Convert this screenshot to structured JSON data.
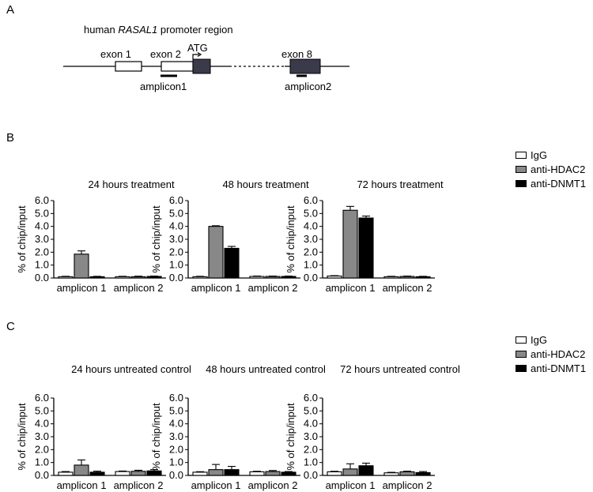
{
  "panel_labels": {
    "a": "A",
    "b": "B",
    "c": "C"
  },
  "diagram": {
    "title_prefix": "human ",
    "title_gene": "RASAL1",
    "title_suffix": " promoter region",
    "exon1": "exon 1",
    "exon2": "exon 2",
    "atg": "ATG",
    "exon8": "exon 8",
    "amplicon1": "amplicon1",
    "amplicon2": "amplicon2"
  },
  "colors": {
    "IgG": "#ffffff",
    "anti-HDAC2": "#888888",
    "anti-DNMT1": "#000000",
    "exon_dark": "#3a3a4a"
  },
  "legend": {
    "igg": "IgG",
    "hdac2": "anti-HDAC2",
    "dnmt1": "anti-DNMT1"
  },
  "chart_data": [
    {
      "type": "bar",
      "title": "24 hours treatment",
      "ylabel": "% of chip/input",
      "ylim": [
        0,
        6
      ],
      "yticks": [
        "0.0",
        "1.0",
        "2.0",
        "3.0",
        "4.0",
        "5.0",
        "6.0"
      ],
      "categories": [
        "amplicon 1",
        "amplicon 2"
      ],
      "series": [
        {
          "name": "IgG",
          "values": [
            0.1,
            0.1
          ],
          "errors": [
            0.03,
            0.03
          ]
        },
        {
          "name": "anti-HDAC2",
          "values": [
            1.85,
            0.1
          ],
          "errors": [
            0.25,
            0.04
          ]
        },
        {
          "name": "anti-DNMT1",
          "values": [
            0.1,
            0.12
          ],
          "errors": [
            0.03,
            0.03
          ]
        }
      ]
    },
    {
      "type": "bar",
      "title": "48 hours treatment",
      "ylabel": "% of chip/input",
      "ylim": [
        0,
        6
      ],
      "yticks": [
        "0.0",
        "1.0",
        "2.0",
        "3.0",
        "4.0",
        "5.0",
        "6.0"
      ],
      "categories": [
        "amplicon 1",
        "amplicon 2"
      ],
      "series": [
        {
          "name": "IgG",
          "values": [
            0.1,
            0.12
          ],
          "errors": [
            0.03,
            0.03
          ]
        },
        {
          "name": "anti-HDAC2",
          "values": [
            4.0,
            0.12
          ],
          "errors": [
            0.05,
            0.03
          ]
        },
        {
          "name": "anti-DNMT1",
          "values": [
            2.3,
            0.12
          ],
          "errors": [
            0.15,
            0.03
          ]
        }
      ]
    },
    {
      "type": "bar",
      "title": "72 hours treatment",
      "ylabel": "% of chip/input",
      "ylim": [
        0,
        6
      ],
      "yticks": [
        "0.0",
        "1.0",
        "2.0",
        "3.0",
        "4.0",
        "5.0",
        "6.0"
      ],
      "categories": [
        "amplicon 1",
        "amplicon 2"
      ],
      "series": [
        {
          "name": "IgG",
          "values": [
            0.15,
            0.1
          ],
          "errors": [
            0.03,
            0.03
          ]
        },
        {
          "name": "anti-HDAC2",
          "values": [
            5.25,
            0.12
          ],
          "errors": [
            0.3,
            0.03
          ]
        },
        {
          "name": "anti-DNMT1",
          "values": [
            4.65,
            0.1
          ],
          "errors": [
            0.15,
            0.03
          ]
        }
      ]
    },
    {
      "type": "bar",
      "title": "24 hours untreated control",
      "ylabel": "% of chip/input",
      "ylim": [
        0,
        6
      ],
      "yticks": [
        "0.0",
        "1.0",
        "2.0",
        "3.0",
        "4.0",
        "5.0",
        "6.0"
      ],
      "categories": [
        "amplicon 1",
        "amplicon 2"
      ],
      "series": [
        {
          "name": "IgG",
          "values": [
            0.25,
            0.3
          ],
          "errors": [
            0.05,
            0.04
          ]
        },
        {
          "name": "anti-HDAC2",
          "values": [
            0.8,
            0.32
          ],
          "errors": [
            0.4,
            0.08
          ]
        },
        {
          "name": "anti-DNMT1",
          "values": [
            0.25,
            0.35
          ],
          "errors": [
            0.08,
            0.1
          ]
        }
      ]
    },
    {
      "type": "bar",
      "title": "48 hours untreated control",
      "ylabel": "% of chip/input",
      "ylim": [
        0,
        6
      ],
      "yticks": [
        "0.0",
        "1.0",
        "2.0",
        "3.0",
        "4.0",
        "5.0",
        "6.0"
      ],
      "categories": [
        "amplicon 1",
        "amplicon 2"
      ],
      "series": [
        {
          "name": "IgG",
          "values": [
            0.25,
            0.28
          ],
          "errors": [
            0.04,
            0.04
          ]
        },
        {
          "name": "anti-HDAC2",
          "values": [
            0.45,
            0.3
          ],
          "errors": [
            0.4,
            0.08
          ]
        },
        {
          "name": "anti-DNMT1",
          "values": [
            0.45,
            0.25
          ],
          "errors": [
            0.25,
            0.05
          ]
        }
      ]
    },
    {
      "type": "bar",
      "title": "72 hours untreated control",
      "ylabel": "% of chip/input",
      "ylim": [
        0,
        6
      ],
      "yticks": [
        "0.0",
        "1.0",
        "2.0",
        "3.0",
        "4.0",
        "5.0",
        "6.0"
      ],
      "categories": [
        "amplicon 1",
        "amplicon 2"
      ],
      "series": [
        {
          "name": "IgG",
          "values": [
            0.28,
            0.2
          ],
          "errors": [
            0.04,
            0.04
          ]
        },
        {
          "name": "anti-HDAC2",
          "values": [
            0.5,
            0.28
          ],
          "errors": [
            0.4,
            0.05
          ]
        },
        {
          "name": "anti-DNMT1",
          "values": [
            0.75,
            0.22
          ],
          "errors": [
            0.2,
            0.08
          ]
        }
      ]
    }
  ]
}
